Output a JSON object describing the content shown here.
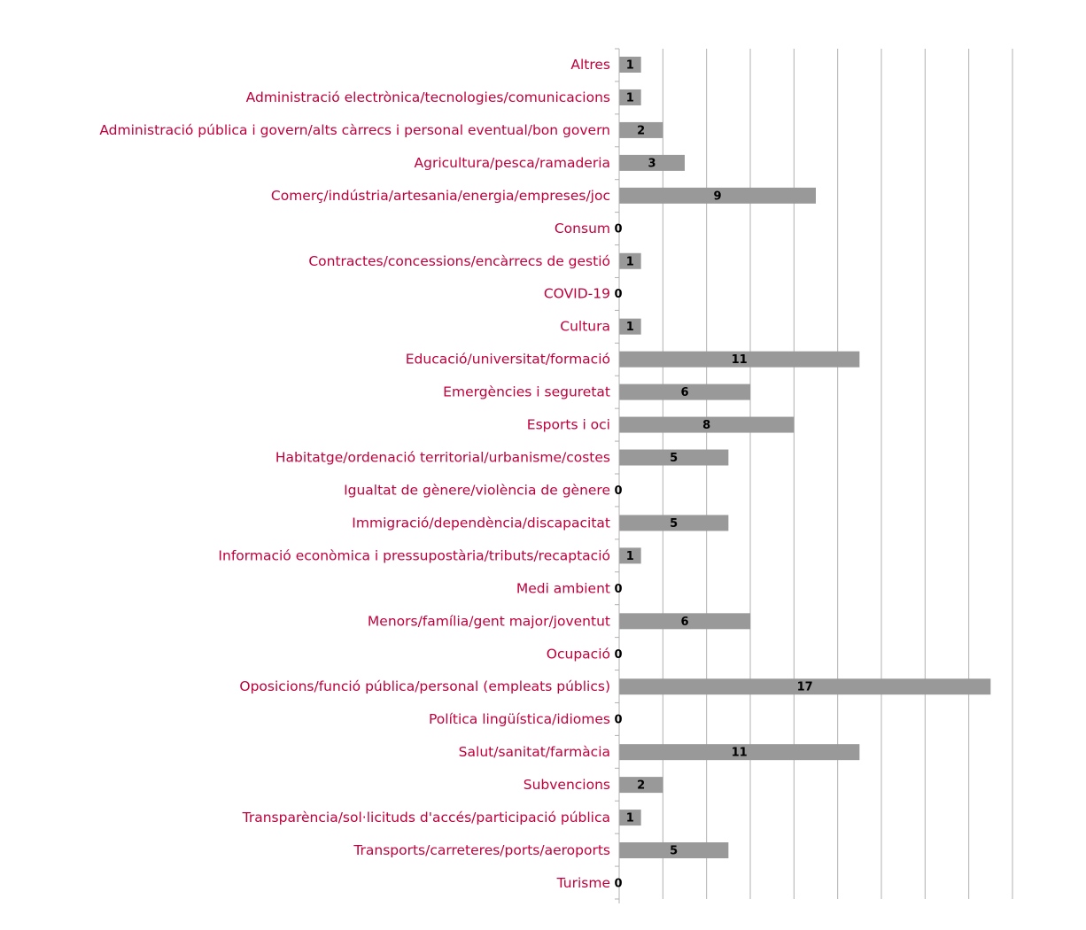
{
  "chart_data": {
    "type": "bar",
    "orientation": "horizontal",
    "title": "",
    "xlabel": "",
    "ylabel": "",
    "xlim": [
      0,
      18
    ],
    "grid": true,
    "legend": "none",
    "data_labels": true,
    "categories": [
      "Altres",
      "Administració electrònica/tecnologies/comunicacions",
      "Administració pública i govern/alts càrrecs i personal eventual/bon govern",
      "Agricultura/pesca/ramaderia",
      "Comerç/indústria/artesania/energia/empreses/joc",
      "Consum",
      "Contractes/concessions/encàrrecs de gestió",
      "COVID-19",
      "Cultura",
      "Educació/universitat/formació",
      "Emergències i seguretat",
      "Esports i oci",
      "Habitatge/ordenació territorial/urbanisme/costes",
      "Igualtat de gènere/violència de gènere",
      "Immigració/dependència/discapacitat",
      "Informació econòmica i pressupostària/tributs/recaptació",
      "Medi ambient",
      "Menors/família/gent major/joventut",
      "Ocupació",
      "Oposicions/funció pública/personal (empleats públics)",
      "Política lingüística/idiomes",
      "Salut/sanitat/farmàcia",
      "Subvencions",
      "Transparència/sol·licituds d'accés/participació pública",
      "Transports/carreteres/ports/aeroports",
      "Turisme"
    ],
    "values": [
      1,
      1,
      2,
      3,
      9,
      0,
      1,
      0,
      1,
      11,
      6,
      8,
      5,
      0,
      5,
      1,
      0,
      6,
      0,
      17,
      0,
      11,
      2,
      1,
      5,
      0
    ],
    "colors": {
      "bar": "#999999",
      "label": "#c0003c",
      "grid": "#b0b0b0",
      "value_label": "#000000"
    }
  }
}
